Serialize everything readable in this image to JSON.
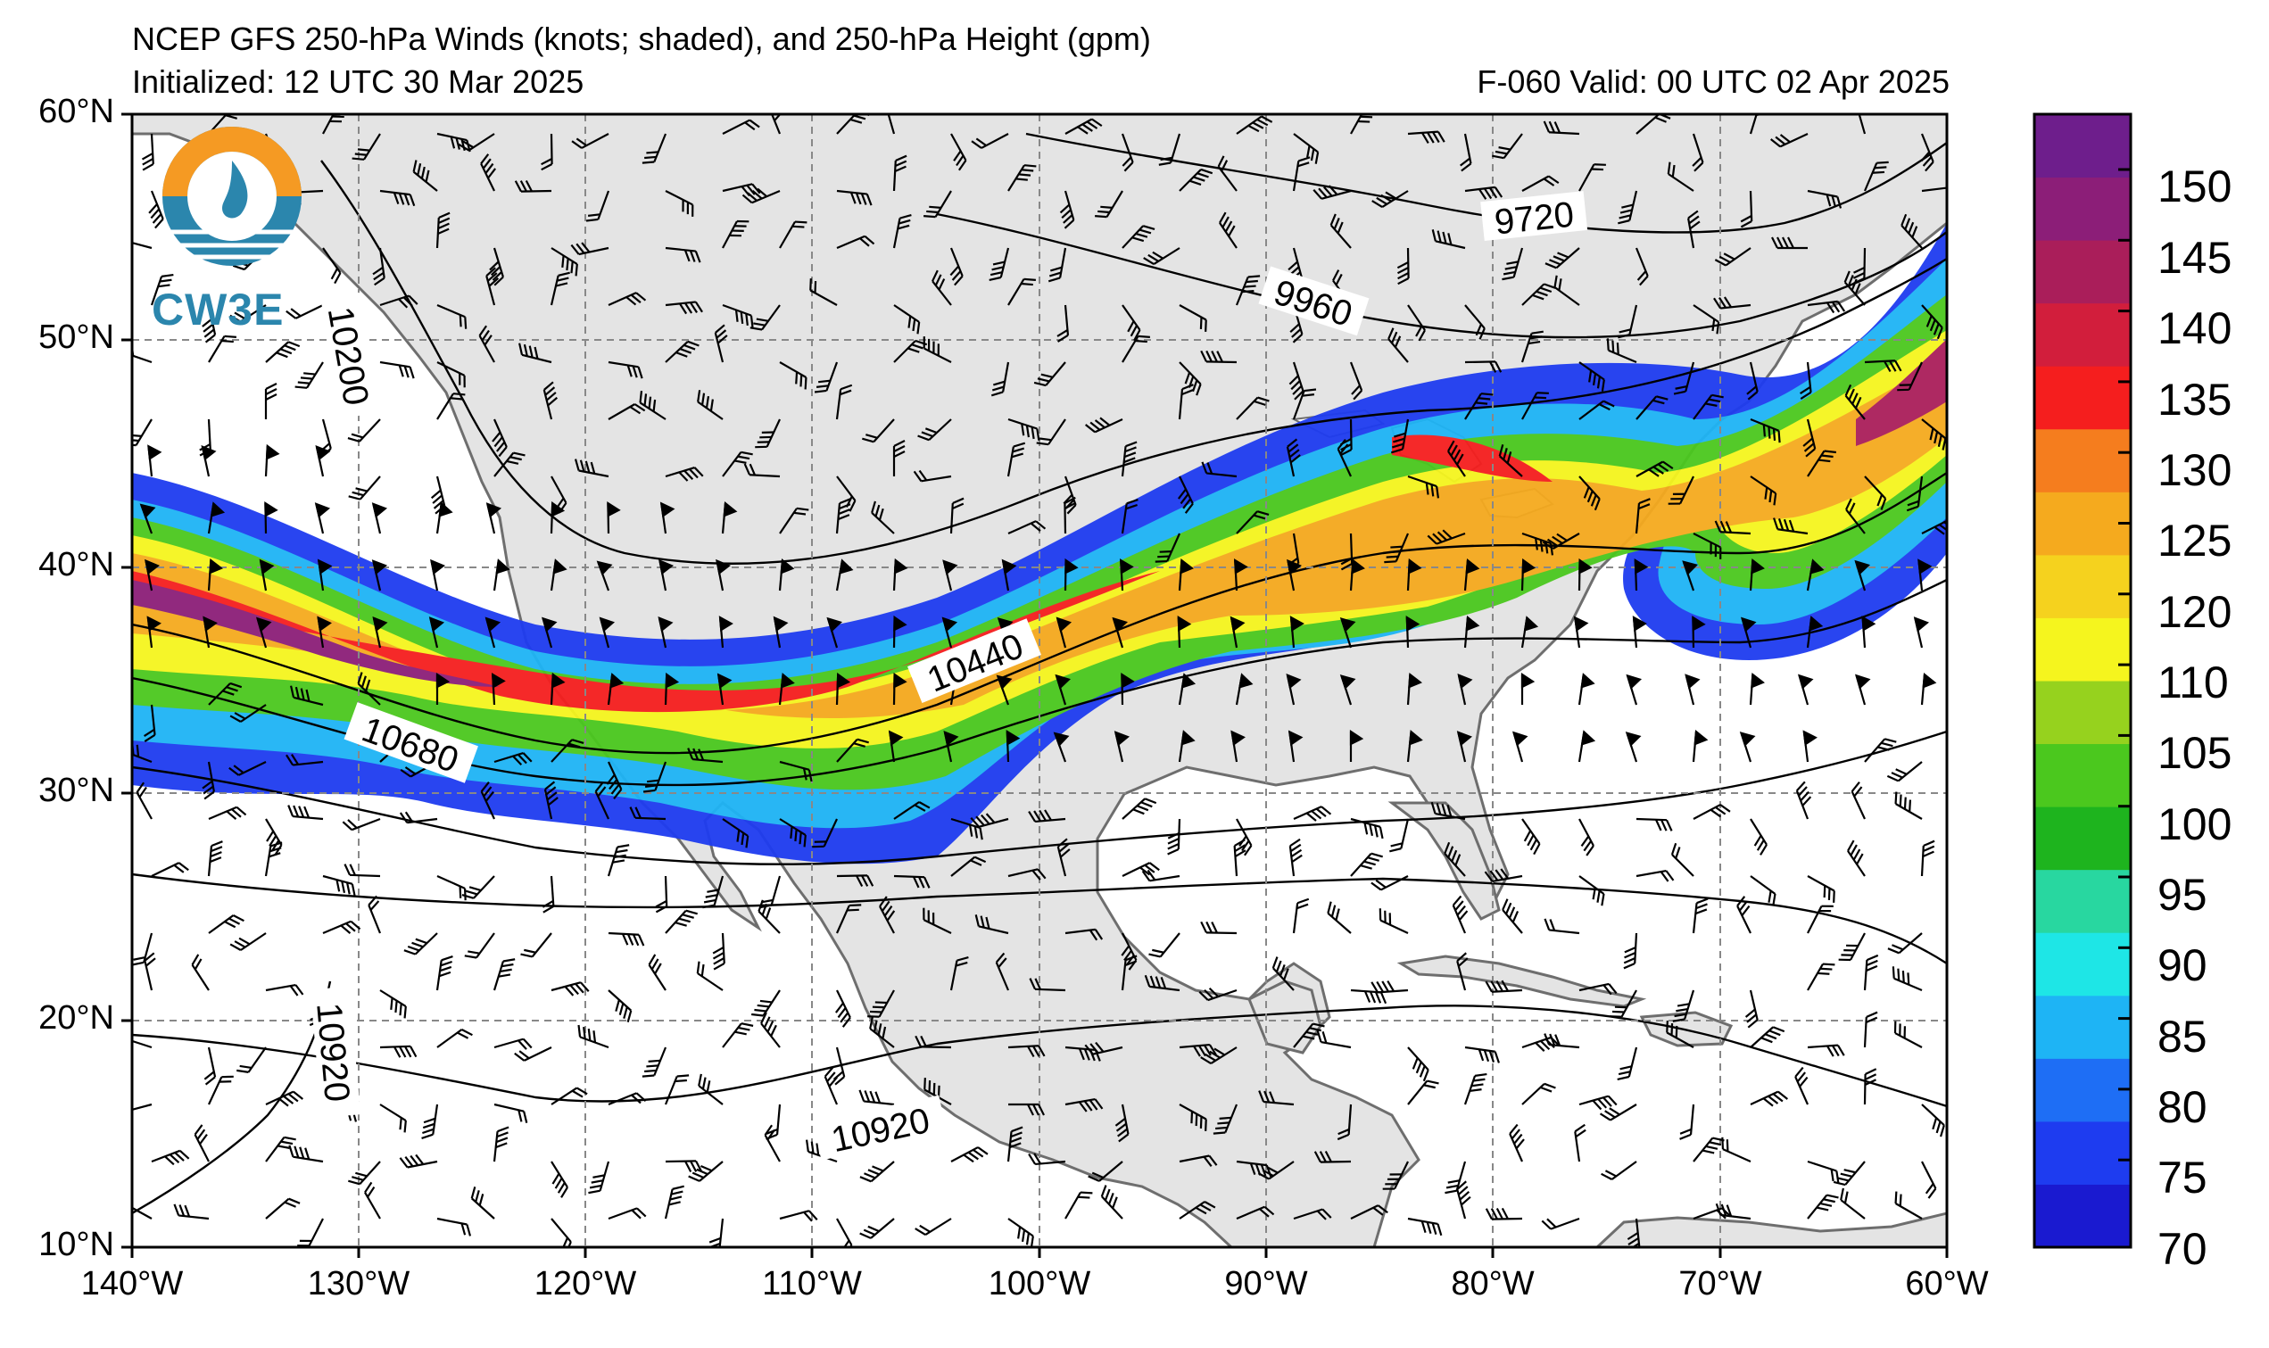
{
  "header": {
    "title": "NCEP GFS 250-hPa Winds (knots; shaded), and 250-hPa Height (gpm)",
    "initialized": "Initialized: 12 UTC 30 Mar 2025",
    "valid": "F-060  Valid: 00 UTC 02 Apr 2025"
  },
  "logo": {
    "text": "CW3E",
    "color": "#2b86ad",
    "accent": "#f59a23"
  },
  "map_axes": {
    "lat_labels": [
      "60°N",
      "50°N",
      "40°N",
      "30°N",
      "20°N",
      "10°N"
    ],
    "lon_labels": [
      "140°W",
      "130°W",
      "120°W",
      "110°W",
      "100°W",
      "90°W",
      "80°W",
      "70°W",
      "60°W"
    ]
  },
  "contour_labels": [
    "9720",
    "9960",
    "10200",
    "10440",
    "10680",
    "10920",
    "10920"
  ],
  "colorbar": {
    "labels": [
      "150",
      "145",
      "140",
      "135",
      "130",
      "125",
      "120",
      "110",
      "105",
      "100",
      "95",
      "90",
      "85",
      "80",
      "75",
      "70"
    ],
    "colors_bottom_to_top": [
      "#1a1ad0",
      "#1e3cf0",
      "#1e6ef5",
      "#1eb4f5",
      "#1ee6e6",
      "#28d7a0",
      "#1eb41e",
      "#4bc81e",
      "#96d21e",
      "#f5f51e",
      "#f5d21e",
      "#f5aa1e",
      "#f57d1e",
      "#f51e1e",
      "#d21e3c",
      "#aa1e5a",
      "#8c1e78",
      "#6e1e8c"
    ]
  },
  "colors": {
    "land": "#e4e4e4",
    "ocean": "#ffffff",
    "coast": "#6e6e6e",
    "grid": "#888888"
  }
}
